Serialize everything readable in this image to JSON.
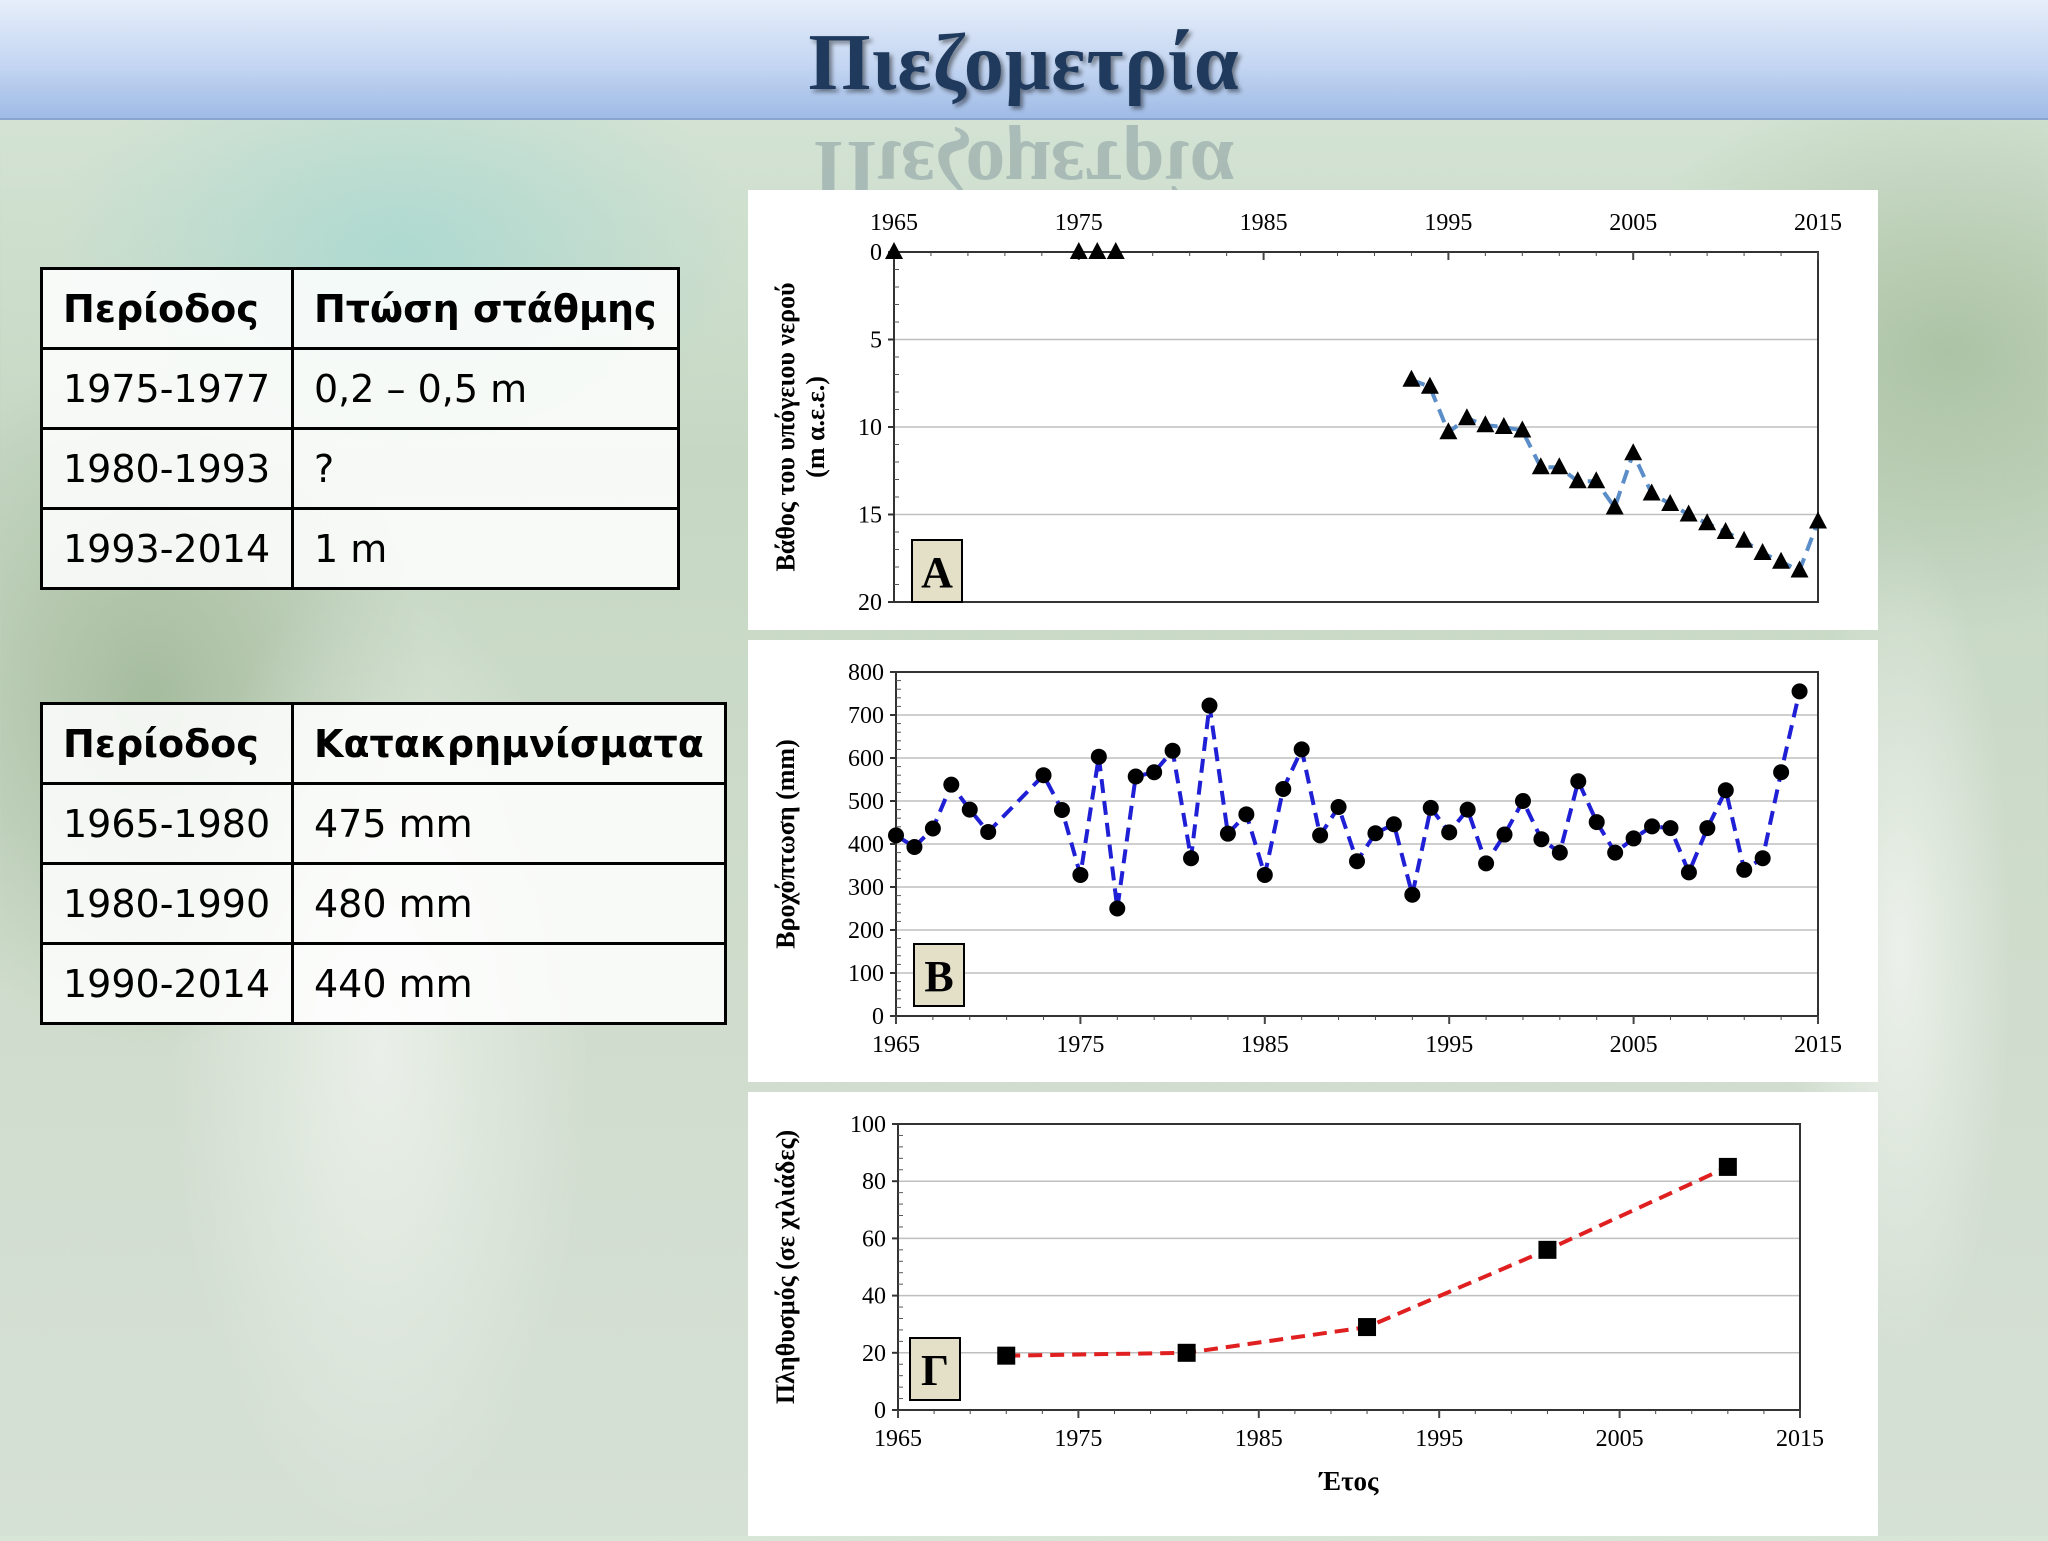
{
  "header": {
    "title": "Πιεζομετρία"
  },
  "table_drawdown": {
    "headers": [
      "Περίοδος",
      "Πτώση στάθμης"
    ],
    "rows": [
      [
        "1975-1977",
        "0,2 – 0,5 m"
      ],
      [
        "1980-1993",
        "?"
      ],
      [
        "1993-2014",
        "1 m"
      ]
    ]
  },
  "table_precip": {
    "headers": [
      "Περίοδος",
      "Κατακρημνίσματα"
    ],
    "rows": [
      [
        "1965-1980",
        "475 mm"
      ],
      [
        "1980-1990",
        "480 mm"
      ],
      [
        "1990-2014",
        "440 mm"
      ]
    ]
  },
  "colors": {
    "line_A": "#5b8ec8",
    "line_B": "#1f1fd6",
    "line_C": "#e02020",
    "marker": "#000000"
  },
  "chart_data": [
    {
      "type": "line",
      "panel_label": "A",
      "ylabel_lines": [
        "Βάθος του υπόγειου νερού",
        "(m α.ε.ε.)"
      ],
      "xlabel": "",
      "x_axis_position": "top",
      "y_inverted": true,
      "xlim": [
        1965,
        2015
      ],
      "ylim": [
        0,
        20
      ],
      "xticks": [
        1965,
        1975,
        1985,
        1995,
        2005,
        2015
      ],
      "yticks": [
        0,
        5,
        10,
        15,
        20
      ],
      "marker": "triangle",
      "series": [
        {
          "points": [
            [
              1965,
              0
            ],
            [
              1975,
              0
            ],
            [
              1976,
              0
            ],
            [
              1977,
              0
            ],
            [
              1993,
              7.3
            ],
            [
              1994,
              7.7
            ],
            [
              1995,
              10.3
            ],
            [
              1996,
              9.5
            ],
            [
              1997,
              9.9
            ],
            [
              1998,
              10.0
            ],
            [
              1999,
              10.2
            ],
            [
              2000,
              12.3
            ],
            [
              2001,
              12.3
            ],
            [
              2002,
              13.1
            ],
            [
              2003,
              13.1
            ],
            [
              2004,
              14.6
            ],
            [
              2005,
              11.5
            ],
            [
              2006,
              13.8
            ],
            [
              2007,
              14.4
            ],
            [
              2008,
              15.0
            ],
            [
              2009,
              15.5
            ],
            [
              2010,
              16.0
            ],
            [
              2011,
              16.5
            ],
            [
              2012,
              17.2
            ],
            [
              2013,
              17.7
            ],
            [
              2014,
              18.2
            ],
            [
              2015,
              15.4
            ]
          ],
          "dashed_from_index": 4
        }
      ]
    },
    {
      "type": "line",
      "panel_label": "Β",
      "ylabel_lines": [
        "Βροχόπτωση (mm)"
      ],
      "xlabel": "",
      "xlim": [
        1965,
        2015
      ],
      "ylim": [
        0,
        800
      ],
      "xticks": [
        1965,
        1975,
        1985,
        1995,
        2005,
        2015
      ],
      "yticks": [
        0,
        100,
        200,
        300,
        400,
        500,
        600,
        700,
        800
      ],
      "marker": "circle",
      "series": [
        {
          "points": [
            [
              1965,
              420
            ],
            [
              1966,
              393
            ],
            [
              1967,
              436
            ],
            [
              1968,
              538
            ],
            [
              1969,
              480
            ],
            [
              1970,
              428
            ],
            [
              1973,
              560
            ],
            [
              1974,
              479
            ],
            [
              1975,
              328
            ],
            [
              1976,
              603
            ],
            [
              1977,
              250
            ],
            [
              1978,
              557
            ],
            [
              1979,
              567
            ],
            [
              1980,
              617
            ],
            [
              1981,
              367
            ],
            [
              1982,
              722
            ],
            [
              1983,
              424
            ],
            [
              1984,
              469
            ],
            [
              1985,
              328
            ],
            [
              1986,
              528
            ],
            [
              1987,
              620
            ],
            [
              1988,
              420
            ],
            [
              1989,
              486
            ],
            [
              1990,
              360
            ],
            [
              1991,
              425
            ],
            [
              1992,
              446
            ],
            [
              1993,
              282
            ],
            [
              1994,
              484
            ],
            [
              1995,
              427
            ],
            [
              1996,
              480
            ],
            [
              1997,
              355
            ],
            [
              1998,
              422
            ],
            [
              1999,
              500
            ],
            [
              2000,
              411
            ],
            [
              2001,
              380
            ],
            [
              2002,
              546
            ],
            [
              2003,
              451
            ],
            [
              2004,
              380
            ],
            [
              2005,
              413
            ],
            [
              2006,
              441
            ],
            [
              2007,
              437
            ],
            [
              2008,
              334
            ],
            [
              2009,
              437
            ],
            [
              2010,
              525
            ],
            [
              2011,
              340
            ],
            [
              2012,
              367
            ],
            [
              2013,
              567
            ],
            [
              2014,
              755
            ]
          ],
          "dashed_from_index": 0
        }
      ]
    },
    {
      "type": "line",
      "panel_label": "Γ",
      "ylabel_lines": [
        "Πληθυσμός (σε χιλιάδες)"
      ],
      "xlabel": "Έτος",
      "xlim": [
        1965,
        2015
      ],
      "ylim": [
        0,
        100
      ],
      "xticks": [
        1965,
        1975,
        1985,
        1995,
        2005,
        2015
      ],
      "yticks": [
        0,
        20,
        40,
        60,
        80,
        100
      ],
      "marker": "square",
      "series": [
        {
          "points": [
            [
              1971,
              19
            ],
            [
              1981,
              20
            ],
            [
              1991,
              29
            ],
            [
              2001,
              56
            ],
            [
              2011,
              85
            ]
          ],
          "dashed_from_index": 0
        }
      ]
    }
  ]
}
